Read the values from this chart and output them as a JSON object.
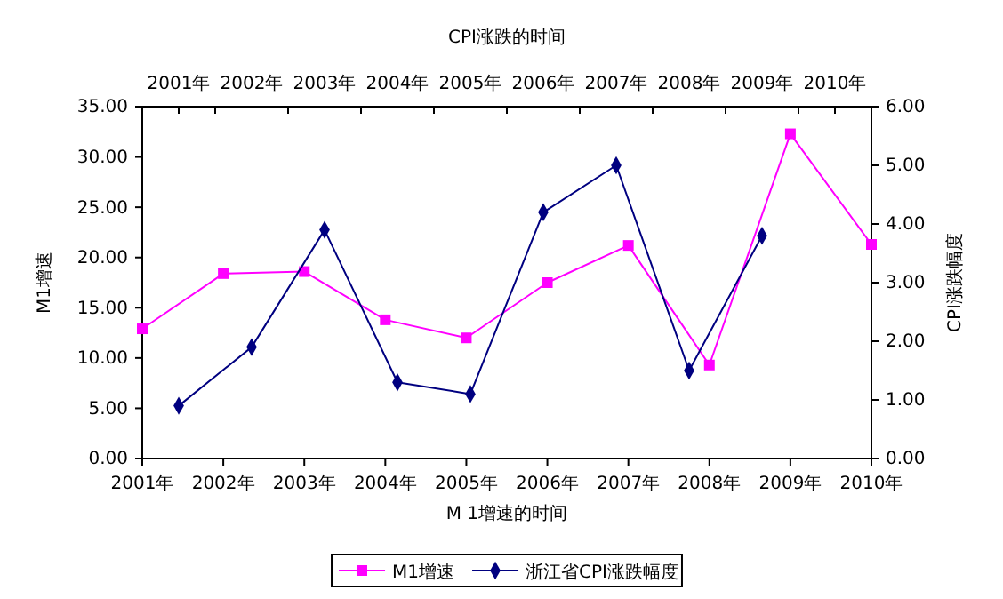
{
  "chart_data": {
    "type": "line",
    "x2label": "CPI涨跌的时间",
    "xlabel": "M 1增速的时间",
    "ylabel": "M1增速",
    "y2label": "CPI涨跌幅度",
    "xlim": [
      2001,
      2010
    ],
    "xticks": [
      {
        "value": 2001,
        "label": "2001年"
      },
      {
        "value": 2002,
        "label": "2002年"
      },
      {
        "value": 2003,
        "label": "2003年"
      },
      {
        "value": 2004,
        "label": "2004年"
      },
      {
        "value": 2005,
        "label": "2005年"
      },
      {
        "value": 2006,
        "label": "2006年"
      },
      {
        "value": 2007,
        "label": "2007年"
      },
      {
        "value": 2008,
        "label": "2008年"
      },
      {
        "value": 2009,
        "label": "2009年"
      },
      {
        "value": 2010,
        "label": "2010年"
      }
    ],
    "x2lim": [
      2001,
      2010
    ],
    "x2ticks": [
      {
        "value": 2001,
        "label": "2001年"
      },
      {
        "value": 2002,
        "label": "2002年"
      },
      {
        "value": 2003,
        "label": "2003年"
      },
      {
        "value": 2004,
        "label": "2004年"
      },
      {
        "value": 2005,
        "label": "2005年"
      },
      {
        "value": 2006,
        "label": "2006年"
      },
      {
        "value": 2007,
        "label": "2007年"
      },
      {
        "value": 2008,
        "label": "2008年"
      },
      {
        "value": 2009,
        "label": "2009年"
      },
      {
        "value": 2010,
        "label": "2010年"
      },
      {
        "value": 2001.5,
        "label": null
      },
      {
        "value": 2002.5,
        "label": null
      },
      {
        "value": 2003.5,
        "label": null
      },
      {
        "value": 2004.5,
        "label": null
      },
      {
        "value": 2005.5,
        "label": null
      },
      {
        "value": 2006.5,
        "label": null
      },
      {
        "value": 2007.5,
        "label": null
      },
      {
        "value": 2008.5,
        "label": null
      },
      {
        "value": 2009.5,
        "label": null
      }
    ],
    "ylim": [
      0,
      35
    ],
    "yticks": [
      {
        "value": 0,
        "label": "0.00"
      },
      {
        "value": 5,
        "label": "5.00"
      },
      {
        "value": 10,
        "label": "10.00"
      },
      {
        "value": 15,
        "label": "15.00"
      },
      {
        "value": 20,
        "label": "20.00"
      },
      {
        "value": 25,
        "label": "25.00"
      },
      {
        "value": 30,
        "label": "30.00"
      },
      {
        "value": 35,
        "label": "35.00"
      }
    ],
    "y2lim": [
      0,
      6
    ],
    "y2ticks": [
      {
        "value": 0,
        "label": "0.00"
      },
      {
        "value": 1,
        "label": "1.00"
      },
      {
        "value": 2,
        "label": "2.00"
      },
      {
        "value": 3,
        "label": "3.00"
      },
      {
        "value": 4,
        "label": "4.00"
      },
      {
        "value": 5,
        "label": "5.00"
      },
      {
        "value": 6,
        "label": "6.00"
      }
    ],
    "legend": "bottom",
    "grid": false,
    "series": [
      {
        "name": "M1增速",
        "color": "#ff00ff",
        "marker": "square",
        "x": [
          2001,
          2002,
          2003,
          2004,
          2005,
          2006,
          2007,
          2008,
          2009,
          2010
        ],
        "values": [
          12.9,
          18.4,
          18.6,
          13.8,
          12.0,
          17.5,
          21.2,
          9.3,
          32.3,
          21.3
        ]
      },
      {
        "name": "浙江省CPI涨跌幅度",
        "color": "#000080",
        "marker": "diamond",
        "axis": "y2",
        "x": [
          2001.45,
          2002.35,
          2003.25,
          2004.15,
          2005.05,
          2005.95,
          2006.85,
          2007.75,
          2008.65
        ],
        "values": [
          0.9,
          1.9,
          3.9,
          1.3,
          1.1,
          4.2,
          5.0,
          1.5,
          3.8
        ]
      }
    ]
  }
}
